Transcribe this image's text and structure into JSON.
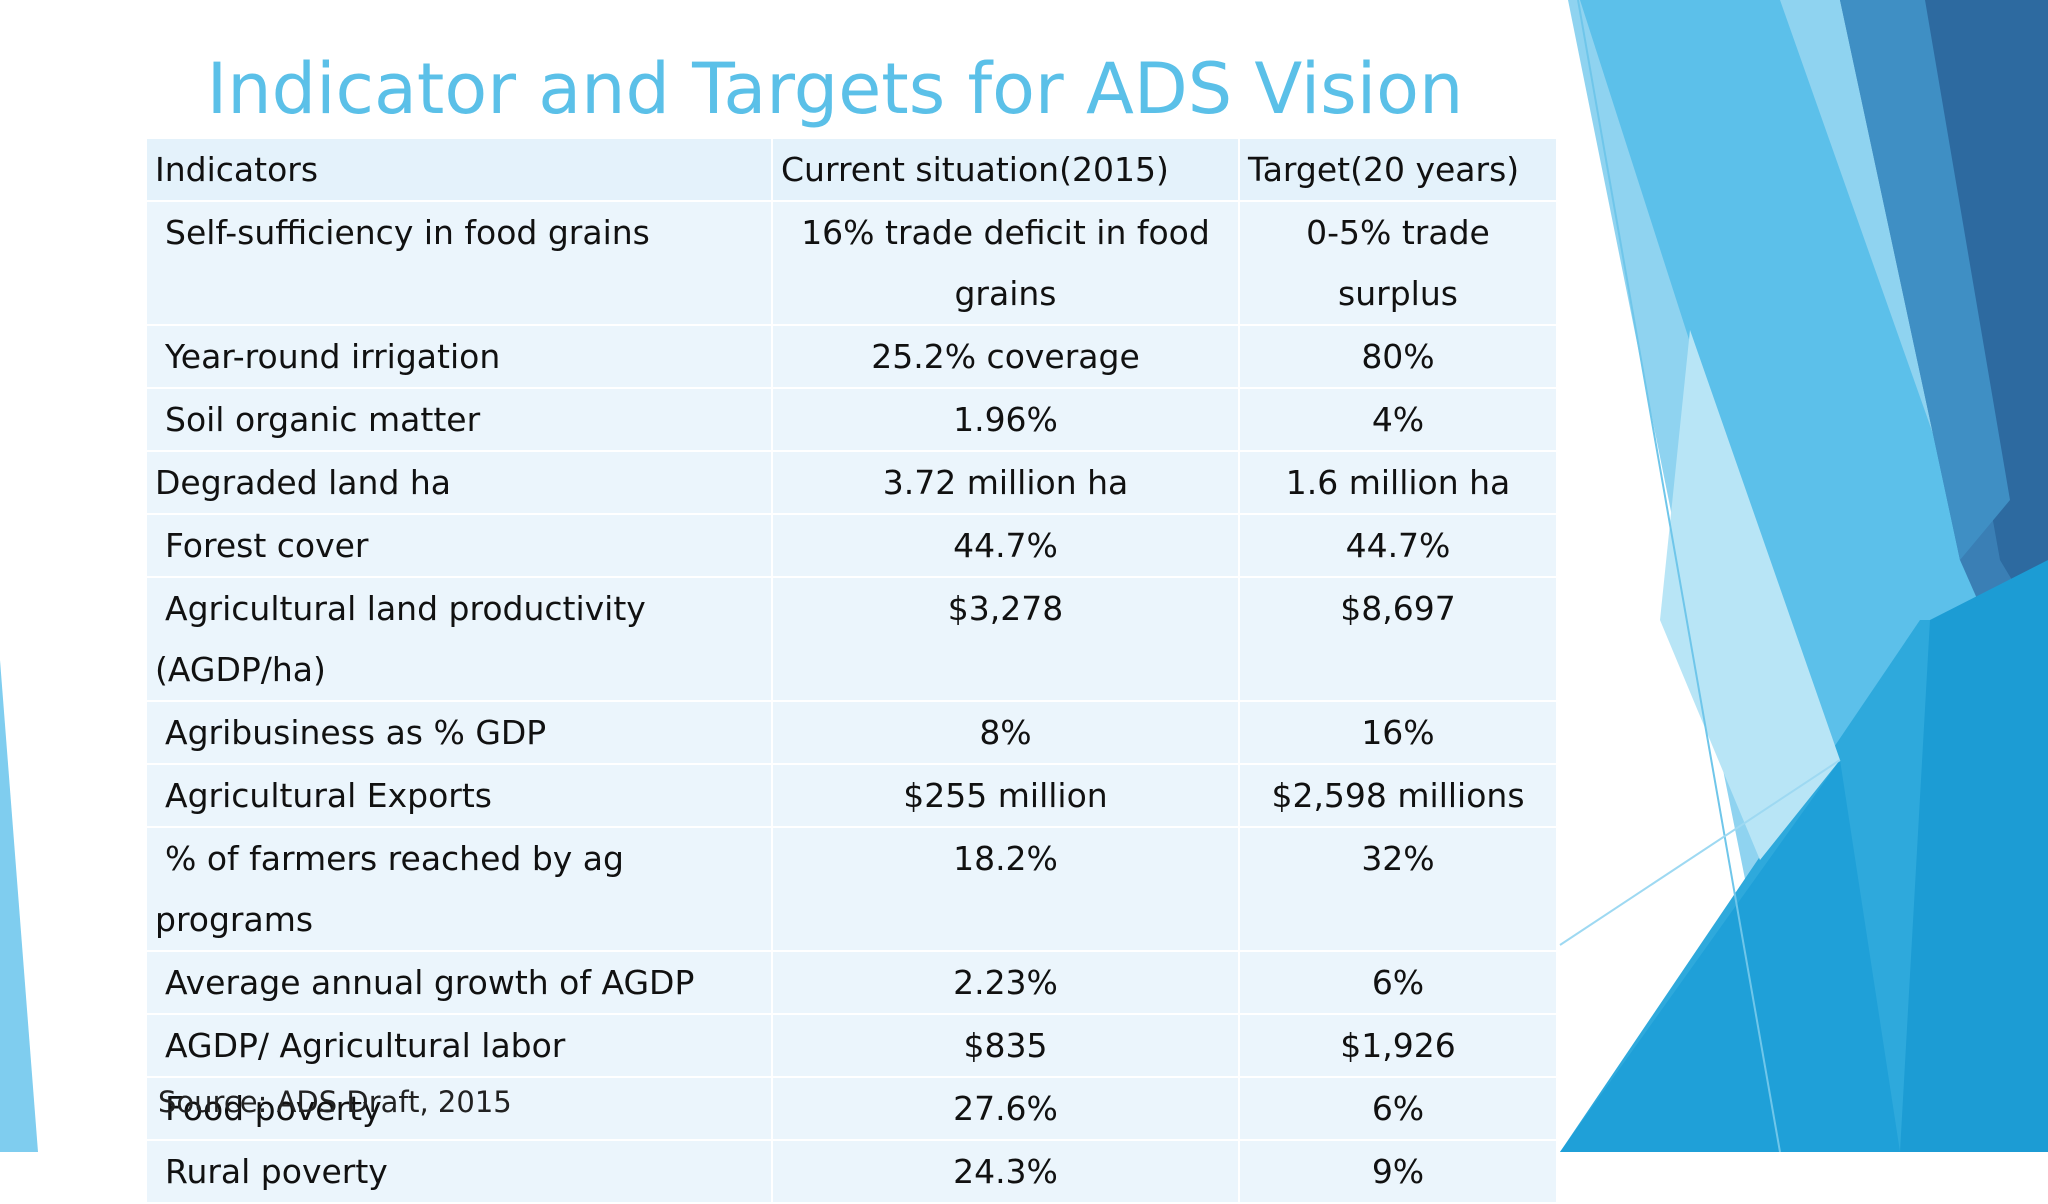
{
  "title": "Indicator and Targets for ADS Vision",
  "table": {
    "headers": [
      "Indicators",
      "Current situation(2015)",
      "Target(20 years)"
    ],
    "rows": [
      {
        "indicator": "Self-sufficiency in food grains",
        "current": "16% trade deficit in food grains",
        "target": "0-5% trade surplus"
      },
      {
        "indicator": "Year-round irrigation",
        "current": "25.2% coverage",
        "target": "80%"
      },
      {
        "indicator": "Soil organic matter",
        "current": "1.96%",
        "target": "4%"
      },
      {
        "indicator": "Degraded land ha",
        "current": "3.72 million ha",
        "target": "1.6 million ha"
      },
      {
        "indicator": "Forest cover",
        "current": "44.7%",
        "target": "44.7%"
      },
      {
        "indicator": "Agricultural land productivity (AGDP/ha)",
        "current": "$3,278",
        "target": "$8,697"
      },
      {
        "indicator": "Agribusiness  as % GDP",
        "current": "8%",
        "target": "16%"
      },
      {
        "indicator": "Agricultural Exports",
        "current": "$255 million",
        "target": "$2,598 millions"
      },
      {
        "indicator": "% of farmers reached by ag programs",
        "current": "18.2%",
        "target": "32%"
      },
      {
        "indicator": "Average annual growth of AGDP",
        "current": "2.23%",
        "target": "6%"
      },
      {
        "indicator": "AGDP/ Agricultural labor",
        "current": "$835",
        "target": "$1,926"
      },
      {
        "indicator": "Food poverty",
        "current": "27.6%",
        "target": "6%"
      },
      {
        "indicator": "Rural poverty",
        "current": "24.3%",
        "target": "9%"
      }
    ]
  },
  "source": "Source: ADS Draft, 2015",
  "colors": {
    "title": "#5bc0e8",
    "cell_bg": "#ebf5fc",
    "accent_dark": "#2a6aa0",
    "accent_mid": "#2ea9dc",
    "accent_light": "#8fd3f0"
  }
}
